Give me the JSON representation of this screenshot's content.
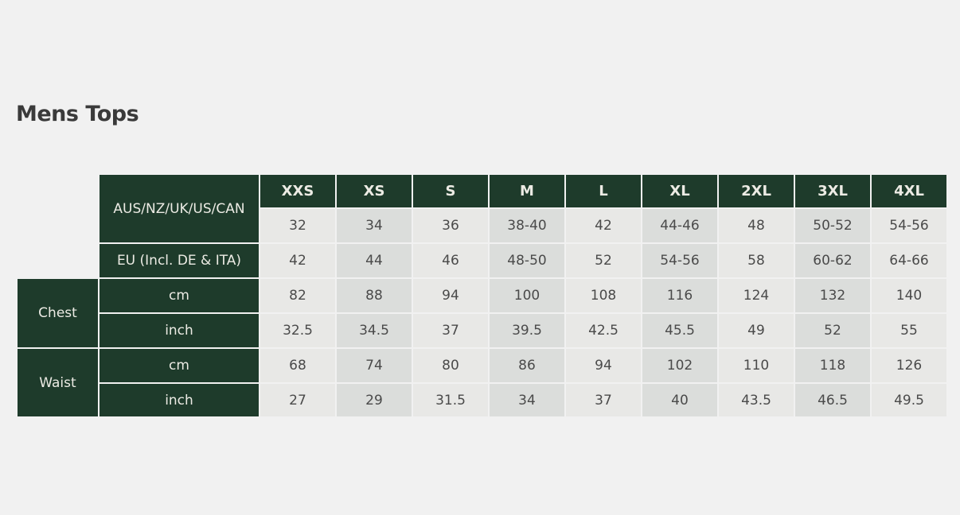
{
  "title": "Mens Tops",
  "sizes": [
    "XXS",
    "XS",
    "S",
    "M",
    "L",
    "XL",
    "2XL",
    "3XL",
    "4XL"
  ],
  "rows": [
    {
      "group": "",
      "label": "AUS/NZ/UK/US/CAN",
      "values": [
        "32",
        "34",
        "36",
        "38-40",
        "42",
        "44-46",
        "48",
        "50-52",
        "54-56"
      ]
    },
    {
      "group": "",
      "label": "EU (Incl. DE & ITA)",
      "values": [
        "42",
        "44",
        "46",
        "48-50",
        "52",
        "54-56",
        "58",
        "60-62",
        "64-66"
      ]
    },
    {
      "group": "Chest",
      "label": "cm",
      "values": [
        "82",
        "88",
        "94",
        "100",
        "108",
        "116",
        "124",
        "132",
        "140"
      ]
    },
    {
      "group": "Chest",
      "label": "inch",
      "values": [
        "32.5",
        "34.5",
        "37",
        "39.5",
        "42.5",
        "45.5",
        "49",
        "52",
        "55"
      ]
    },
    {
      "group": "Waist",
      "label": "cm",
      "values": [
        "68",
        "74",
        "80",
        "86",
        "94",
        "102",
        "110",
        "118",
        "126"
      ]
    },
    {
      "group": "Waist",
      "label": "inch",
      "values": [
        "27",
        "29",
        "31.5",
        "34",
        "37",
        "40",
        "43.5",
        "46.5",
        "49.5"
      ]
    }
  ],
  "groups": [
    "Chest",
    "Waist"
  ]
}
